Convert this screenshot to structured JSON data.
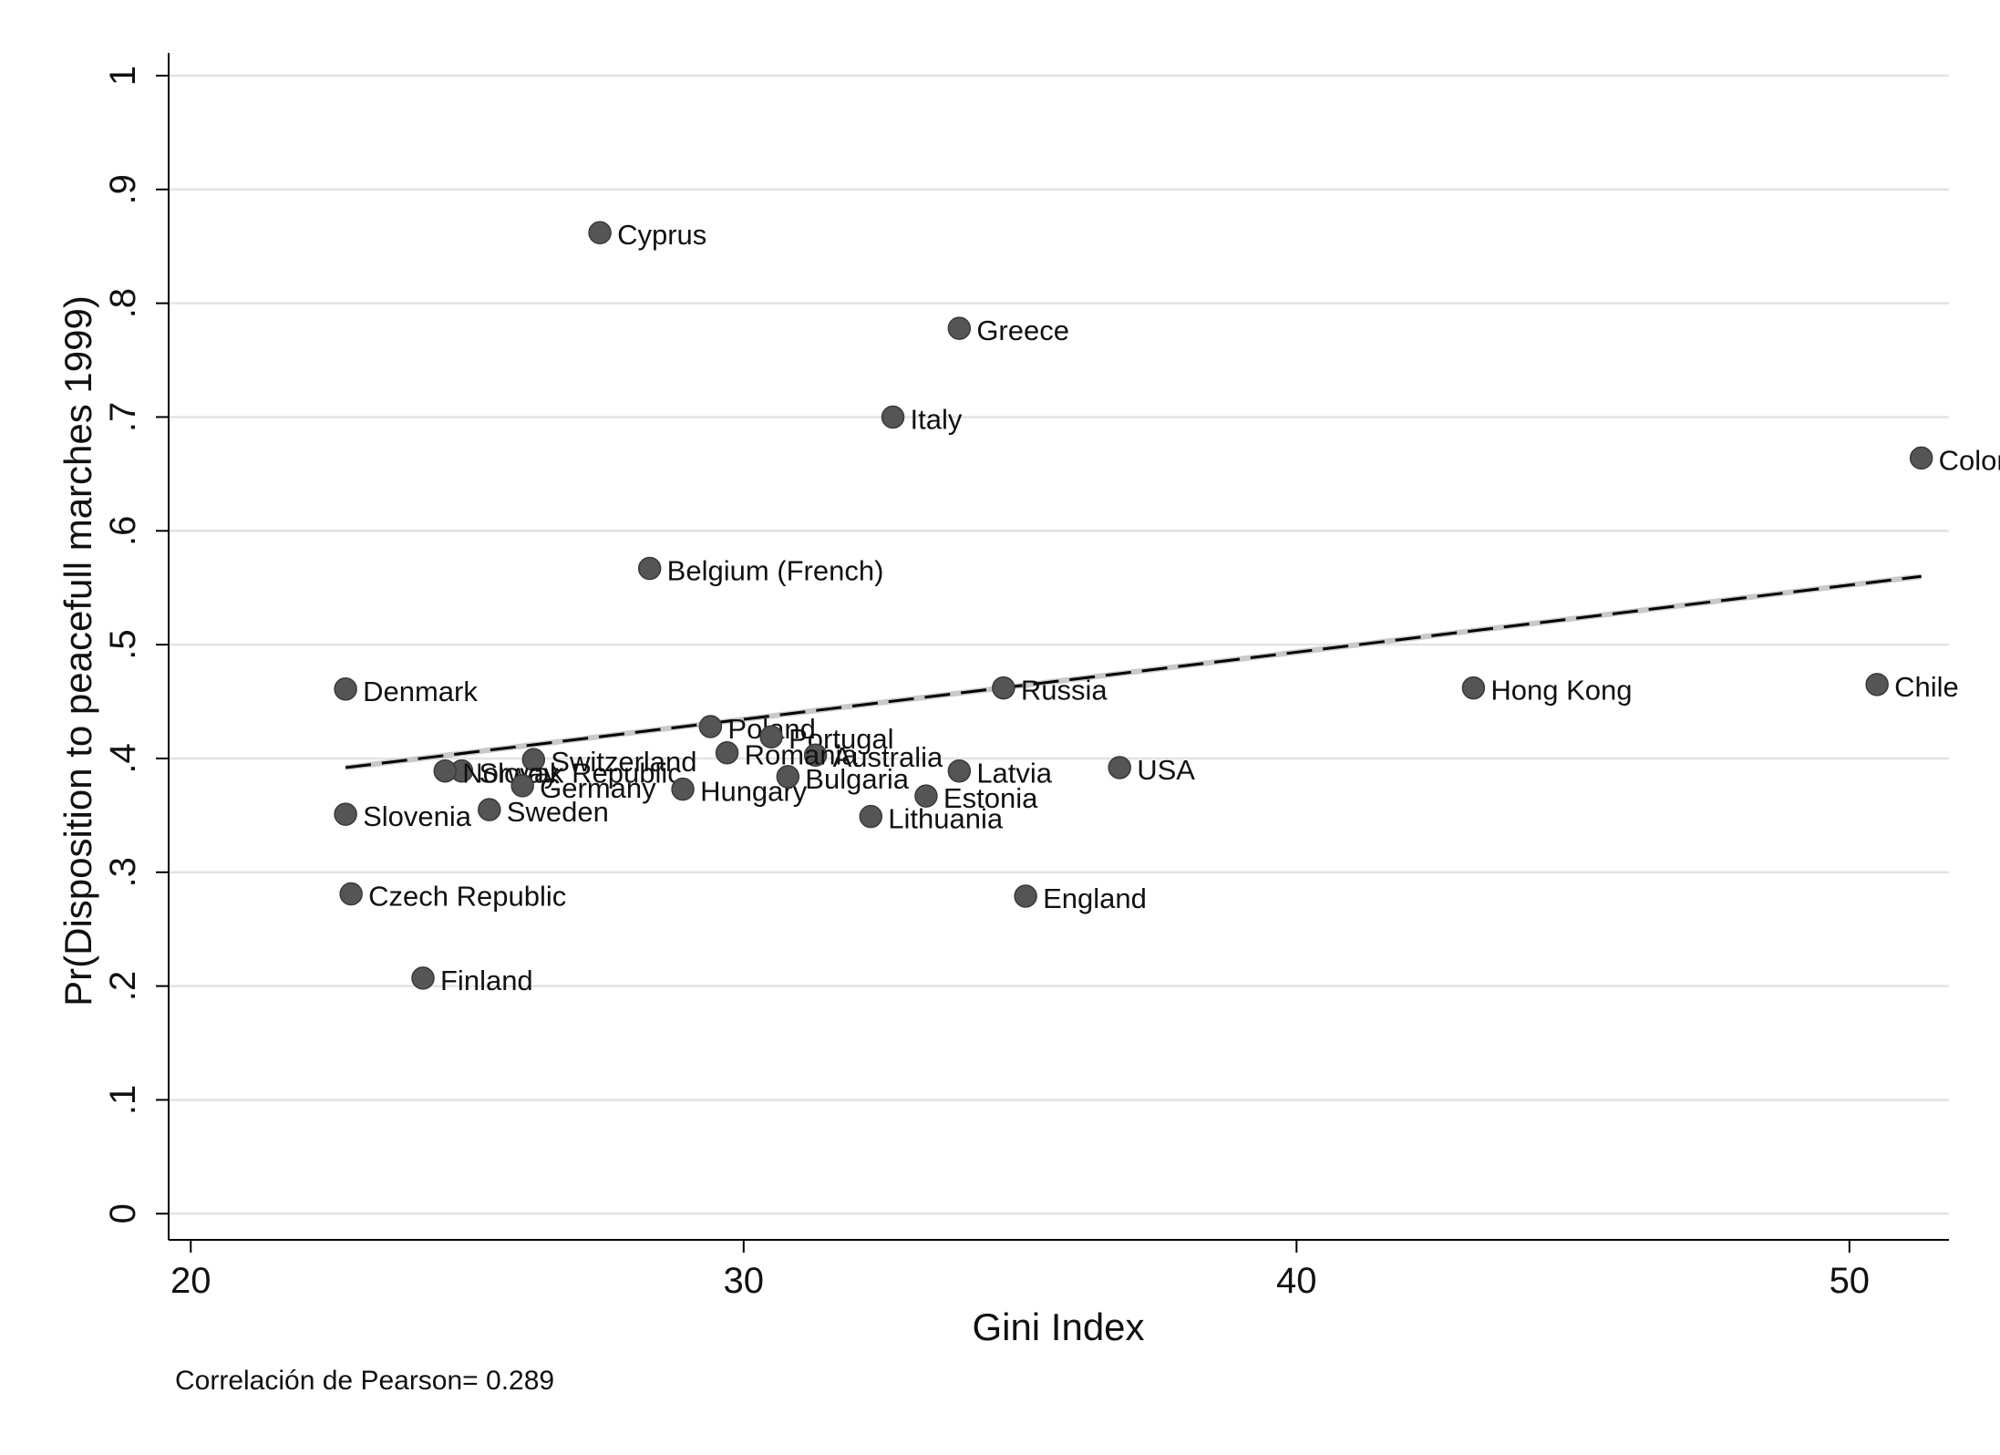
{
  "chart_data": {
    "type": "scatter",
    "xlabel": "Gini Index",
    "ylabel": "Pr(Disposition to peacefull marches 1999)",
    "xlim": [
      19.6,
      51.8
    ],
    "ylim": [
      -0.023,
      1.02
    ],
    "x_ticks": [
      20,
      30,
      40,
      50
    ],
    "x_tick_labels": [
      "20",
      "30",
      "40",
      "50"
    ],
    "y_ticks": [
      0,
      0.1,
      0.2,
      0.3,
      0.4,
      0.5,
      0.6,
      0.7,
      0.8,
      0.9,
      1
    ],
    "y_tick_labels": [
      "0",
      ".1",
      ".2",
      ".3",
      ".4",
      ".5",
      ".6",
      ".7",
      ".8",
      ".9",
      "1"
    ],
    "grid": "horizontal",
    "note": "Correlación de Pearson= 0.289",
    "points": [
      {
        "label": "Cyprus",
        "x": 27.4,
        "y": 0.862
      },
      {
        "label": "Greece",
        "x": 33.9,
        "y": 0.778
      },
      {
        "label": "Italy",
        "x": 32.7,
        "y": 0.7
      },
      {
        "label": "Colombia",
        "x": 51.3,
        "y": 0.664
      },
      {
        "label": "Belgium (French)",
        "x": 28.3,
        "y": 0.567
      },
      {
        "label": "Denmark",
        "x": 22.8,
        "y": 0.461
      },
      {
        "label": "Russia",
        "x": 34.7,
        "y": 0.462
      },
      {
        "label": "Hong Kong",
        "x": 43.2,
        "y": 0.462
      },
      {
        "label": "Chile",
        "x": 50.5,
        "y": 0.465
      },
      {
        "label": "Poland",
        "x": 29.4,
        "y": 0.428
      },
      {
        "label": "Portugal",
        "x": 30.5,
        "y": 0.419
      },
      {
        "label": "Australia",
        "x": 31.3,
        "y": 0.403
      },
      {
        "label": "Romania",
        "x": 29.7,
        "y": 0.405
      },
      {
        "label": "Switzerland",
        "x": 26.2,
        "y": 0.399
      },
      {
        "label": "Slovak Republic",
        "x": 24.9,
        "y": 0.389
      },
      {
        "label": "Norway",
        "x": 24.6,
        "y": 0.389
      },
      {
        "label": "Germany",
        "x": 26.0,
        "y": 0.376
      },
      {
        "label": "Hungary",
        "x": 28.9,
        "y": 0.373
      },
      {
        "label": "Bulgaria",
        "x": 30.8,
        "y": 0.384
      },
      {
        "label": "Latvia",
        "x": 33.9,
        "y": 0.389
      },
      {
        "label": "USA",
        "x": 36.8,
        "y": 0.392
      },
      {
        "label": "Estonia",
        "x": 33.3,
        "y": 0.367
      },
      {
        "label": "Lithuania",
        "x": 32.3,
        "y": 0.349
      },
      {
        "label": "Slovenia",
        "x": 22.8,
        "y": 0.351
      },
      {
        "label": "Sweden",
        "x": 25.4,
        "y": 0.355
      },
      {
        "label": "Czech Republic",
        "x": 22.9,
        "y": 0.281
      },
      {
        "label": "England",
        "x": 35.1,
        "y": 0.279
      },
      {
        "label": "Finland",
        "x": 24.2,
        "y": 0.207
      }
    ],
    "fit_line": {
      "style": "dashed",
      "x": [
        22.8,
        51.3
      ],
      "y": [
        0.392,
        0.56
      ]
    }
  }
}
